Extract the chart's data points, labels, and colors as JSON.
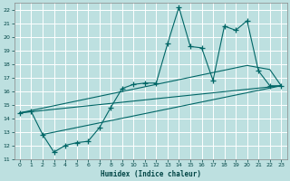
{
  "xlabel": "Humidex (Indice chaleur)",
  "bg_color": "#bde0e0",
  "grid_color": "#ffffff",
  "line_color": "#006666",
  "xlim": [
    -0.5,
    23.5
  ],
  "ylim": [
    11,
    22.5
  ],
  "xticks": [
    0,
    1,
    2,
    3,
    4,
    5,
    6,
    7,
    8,
    9,
    10,
    11,
    12,
    13,
    14,
    15,
    16,
    17,
    18,
    19,
    20,
    21,
    22,
    23
  ],
  "yticks": [
    11,
    12,
    13,
    14,
    15,
    16,
    17,
    18,
    19,
    20,
    21,
    22
  ],
  "line1_x": [
    0,
    1,
    2,
    3,
    4,
    5,
    6,
    7,
    8,
    9,
    10,
    11,
    12,
    13,
    14,
    15,
    16,
    17,
    18,
    19,
    20,
    21,
    22,
    23
  ],
  "line1_y": [
    14.4,
    14.5,
    12.8,
    11.5,
    12.0,
    12.2,
    12.3,
    13.3,
    14.8,
    16.2,
    16.5,
    16.6,
    16.6,
    19.5,
    22.2,
    19.3,
    19.2,
    16.8,
    20.8,
    20.5,
    21.2,
    17.5,
    16.4,
    16.4
  ],
  "line2_x": [
    0,
    23
  ],
  "line2_y": [
    14.4,
    16.4
  ],
  "line3_x": [
    0,
    20,
    22,
    23
  ],
  "line3_y": [
    14.4,
    17.9,
    17.6,
    16.4
  ],
  "line4_x": [
    2,
    23
  ],
  "line4_y": [
    12.8,
    16.4
  ]
}
